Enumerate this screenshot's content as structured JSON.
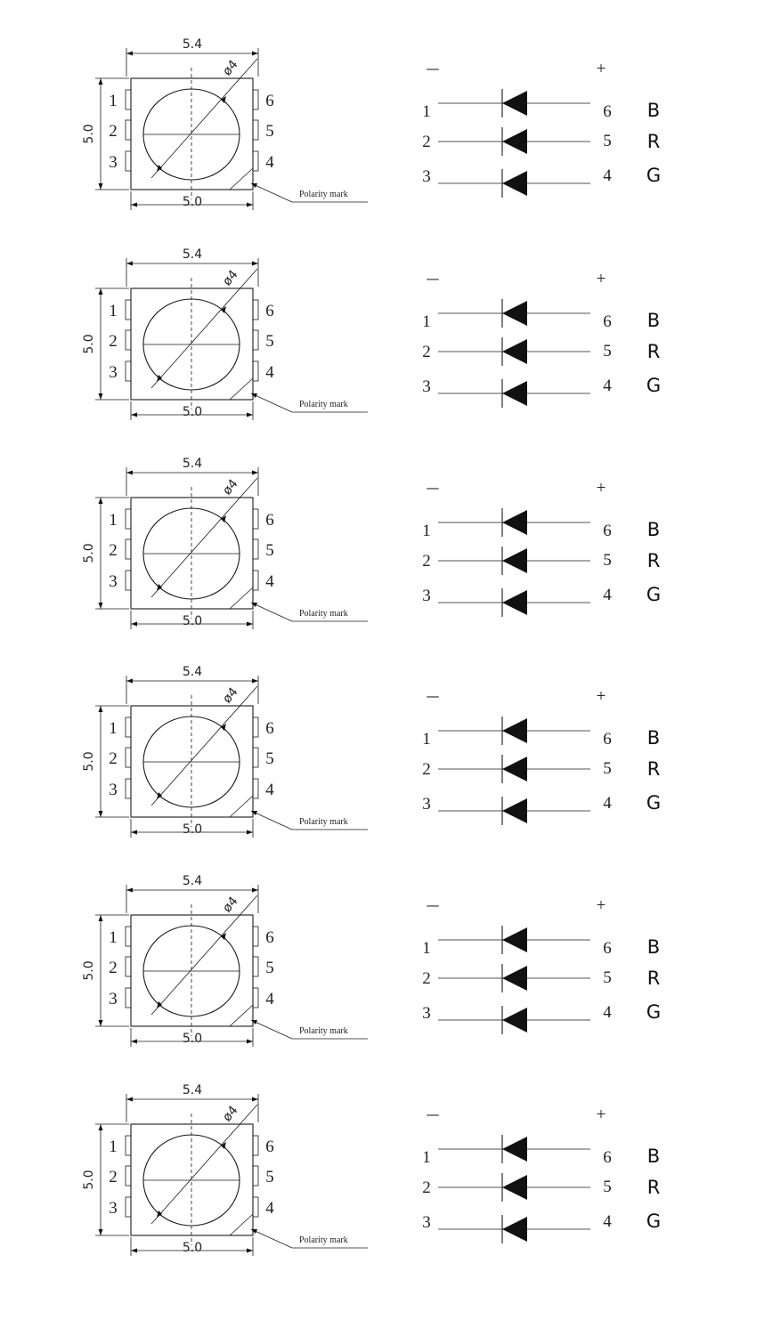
{
  "units": [
    {
      "package": {
        "width_label": "5.4",
        "height_label": "5.0",
        "bottom_label": "5.0",
        "diameter_label": "ø4",
        "left_pins": [
          "1",
          "2",
          "3"
        ],
        "right_pins": [
          "6",
          "5",
          "4"
        ],
        "polarity_label": "Polarity mark"
      },
      "schematic": {
        "minus_label": "—",
        "plus_label": "+",
        "channels": [
          {
            "left_pin": "1",
            "right_pin": "6",
            "color": "B"
          },
          {
            "left_pin": "2",
            "right_pin": "5",
            "color": "R"
          },
          {
            "left_pin": "3",
            "right_pin": "4",
            "color": "G"
          }
        ]
      }
    },
    {
      "package": {
        "width_label": "5.4",
        "height_label": "5.0",
        "bottom_label": "5.0",
        "diameter_label": "ø4",
        "left_pins": [
          "1",
          "2",
          "3"
        ],
        "right_pins": [
          "6",
          "5",
          "4"
        ],
        "polarity_label": "Polarity mark"
      },
      "schematic": {
        "minus_label": "—",
        "plus_label": "+",
        "channels": [
          {
            "left_pin": "1",
            "right_pin": "6",
            "color": "B"
          },
          {
            "left_pin": "2",
            "right_pin": "5",
            "color": "R"
          },
          {
            "left_pin": "3",
            "right_pin": "4",
            "color": "G"
          }
        ]
      }
    },
    {
      "package": {
        "width_label": "5.4",
        "height_label": "5.0",
        "bottom_label": "5.0",
        "diameter_label": "ø4",
        "left_pins": [
          "1",
          "2",
          "3"
        ],
        "right_pins": [
          "6",
          "5",
          "4"
        ],
        "polarity_label": "Polarity mark"
      },
      "schematic": {
        "minus_label": "—",
        "plus_label": "+",
        "channels": [
          {
            "left_pin": "1",
            "right_pin": "6",
            "color": "B"
          },
          {
            "left_pin": "2",
            "right_pin": "5",
            "color": "R"
          },
          {
            "left_pin": "3",
            "right_pin": "4",
            "color": "G"
          }
        ]
      }
    },
    {
      "package": {
        "width_label": "5.4",
        "height_label": "5.0",
        "bottom_label": "5.0",
        "diameter_label": "ø4",
        "left_pins": [
          "1",
          "2",
          "3"
        ],
        "right_pins": [
          "6",
          "5",
          "4"
        ],
        "polarity_label": "Polarity mark"
      },
      "schematic": {
        "minus_label": "—",
        "plus_label": "+",
        "channels": [
          {
            "left_pin": "1",
            "right_pin": "6",
            "color": "B"
          },
          {
            "left_pin": "2",
            "right_pin": "5",
            "color": "R"
          },
          {
            "left_pin": "3",
            "right_pin": "4",
            "color": "G"
          }
        ]
      }
    },
    {
      "package": {
        "width_label": "5.4",
        "height_label": "5.0",
        "bottom_label": "5.0",
        "diameter_label": "ø4",
        "left_pins": [
          "1",
          "2",
          "3"
        ],
        "right_pins": [
          "6",
          "5",
          "4"
        ],
        "polarity_label": "Polarity mark"
      },
      "schematic": {
        "minus_label": "—",
        "plus_label": "+",
        "channels": [
          {
            "left_pin": "1",
            "right_pin": "6",
            "color": "B"
          },
          {
            "left_pin": "2",
            "right_pin": "5",
            "color": "R"
          },
          {
            "left_pin": "3",
            "right_pin": "4",
            "color": "G"
          }
        ]
      }
    },
    {
      "package": {
        "width_label": "5.4",
        "height_label": "5.0",
        "bottom_label": "5.0",
        "diameter_label": "ø4",
        "left_pins": [
          "1",
          "2",
          "3"
        ],
        "right_pins": [
          "6",
          "5",
          "4"
        ],
        "polarity_label": "Polarity mark"
      },
      "schematic": {
        "minus_label": "—",
        "plus_label": "+",
        "channels": [
          {
            "left_pin": "1",
            "right_pin": "6",
            "color": "B"
          },
          {
            "left_pin": "2",
            "right_pin": "5",
            "color": "R"
          },
          {
            "left_pin": "3",
            "right_pin": "4",
            "color": "G"
          }
        ]
      }
    }
  ]
}
